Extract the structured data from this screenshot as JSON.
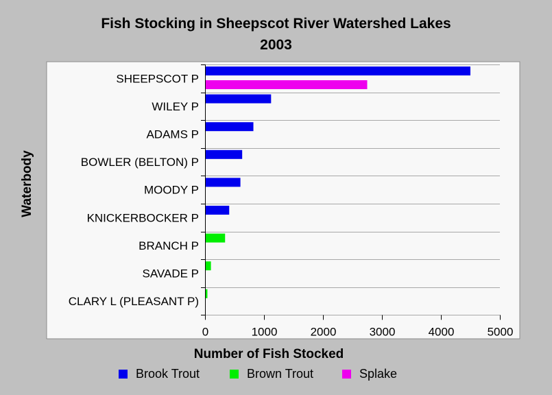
{
  "chart_data": {
    "type": "bar",
    "orientation": "horizontal",
    "title": "Fish Stocking in Sheepscot River Watershed Lakes",
    "subtitle": "2003",
    "xlabel": "Number of Fish Stocked",
    "ylabel": "Waterbody",
    "xlim": [
      0,
      5000
    ],
    "xticks": [
      0,
      1000,
      2000,
      3000,
      4000,
      5000
    ],
    "grid": true,
    "legend_position": "bottom",
    "categories": [
      "SHEEPSCOT P",
      "WILEY P",
      "ADAMS P",
      "BOWLER (BELTON) P",
      "MOODY P",
      "KNICKERBOCKER P",
      "BRANCH P",
      "SAVADE P",
      "CLARY L (PLEASANT P)"
    ],
    "series": [
      {
        "name": "Brook Trout",
        "color": "#0000ee",
        "values": [
          4500,
          1120,
          820,
          630,
          600,
          410,
          0,
          0,
          0
        ]
      },
      {
        "name": "Brown Trout",
        "color": "#00ee00",
        "values": [
          0,
          0,
          0,
          0,
          0,
          0,
          340,
          100,
          40
        ]
      },
      {
        "name": "Splake",
        "color": "#ee00ee",
        "values": [
          2750,
          0,
          0,
          0,
          0,
          0,
          0,
          0,
          0
        ]
      }
    ]
  }
}
